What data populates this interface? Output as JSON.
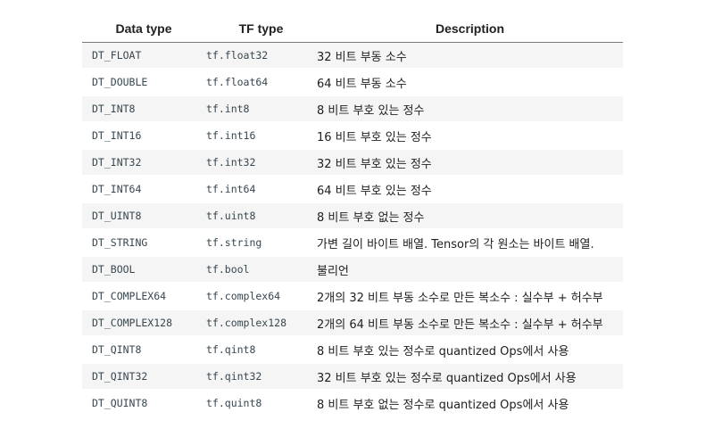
{
  "table": {
    "headers": [
      "Data type",
      "TF type",
      "Description"
    ],
    "rows": [
      [
        "DT_FLOAT",
        "tf.float32",
        "32 비트 부동 소수"
      ],
      [
        "DT_DOUBLE",
        "tf.float64",
        "64 비트 부동 소수"
      ],
      [
        "DT_INT8",
        "tf.int8",
        "8 비트 부호 있는 정수"
      ],
      [
        "DT_INT16",
        "tf.int16",
        "16 비트 부호 있는 정수"
      ],
      [
        "DT_INT32",
        "tf.int32",
        "32 비트 부호 있는 정수"
      ],
      [
        "DT_INT64",
        "tf.int64",
        "64 비트 부호 있는 정수"
      ],
      [
        "DT_UINT8",
        "tf.uint8",
        "8 비트 부호 없는 정수"
      ],
      [
        "DT_STRING",
        "tf.string",
        "가변 길이 바이트 배열. Tensor의 각 원소는 바이트 배열."
      ],
      [
        "DT_BOOL",
        "tf.bool",
        "불리언"
      ],
      [
        "DT_COMPLEX64",
        "tf.complex64",
        "2개의 32 비트 부동 소수로 만든 복소수 : 실수부 + 허수부"
      ],
      [
        "DT_COMPLEX128",
        "tf.complex128",
        "2개의 64 비트 부동 소수로 만든 복소수 : 실수부 + 허수부"
      ],
      [
        "DT_QINT8",
        "tf.qint8",
        "8 비트 부호 있는 정수로 quantized Ops에서 사용"
      ],
      [
        "DT_QINT32",
        "tf.qint32",
        "32 비트 부호 있는 정수로 quantized Ops에서 사용"
      ],
      [
        "DT_QUINT8",
        "tf.quint8",
        "8 비트 부호 없는 정수로 quantized Ops에서 사용"
      ]
    ]
  },
  "colors": {
    "row_stripe": "#f5f5f5",
    "header_rule": "#7a7a7a",
    "code_text": "#37474f",
    "body_text": "#212121"
  }
}
